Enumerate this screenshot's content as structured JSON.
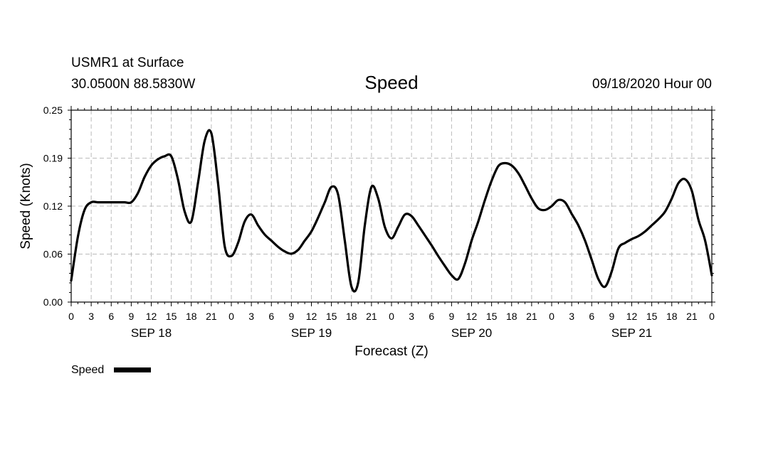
{
  "header": {
    "station": "USMR1 at Surface",
    "location": "30.0500N 88.5830W",
    "title": "Speed",
    "timestamp": "09/18/2020 Hour 00"
  },
  "legend": {
    "label": "Speed"
  },
  "colors": {
    "line": "#000000",
    "grid": "#bbbbbb",
    "axis": "#000000"
  },
  "chart_data": {
    "type": "line",
    "title": "Speed",
    "xlabel": "Forecast (Z)",
    "ylabel": "Speed (Knots)",
    "ylim": [
      0,
      0.25
    ],
    "xlim": [
      0,
      96
    ],
    "yticks": [
      "0.00",
      "0.06",
      "0.12",
      "0.19",
      "0.25"
    ],
    "ytick_values": [
      0,
      0.0625,
      0.125,
      0.1875,
      0.25
    ],
    "xtick_labels": [
      "0",
      "3",
      "6",
      "9",
      "12",
      "15",
      "18",
      "21",
      "0",
      "3",
      "6",
      "9",
      "12",
      "15",
      "18",
      "21",
      "0",
      "3",
      "6",
      "9",
      "12",
      "15",
      "18",
      "21",
      "0",
      "3",
      "6",
      "9",
      "12",
      "15",
      "18",
      "21",
      "0"
    ],
    "day_labels": [
      {
        "text": "SEP 18",
        "hour": 12
      },
      {
        "text": "SEP 19",
        "hour": 36
      },
      {
        "text": "SEP 20",
        "hour": 60
      },
      {
        "text": "SEP 21",
        "hour": 84
      }
    ],
    "grid": true,
    "legend_position": "bottom-left",
    "series": [
      {
        "name": "Speed",
        "x": [
          0,
          1,
          2,
          3,
          4,
          5,
          6,
          7,
          8,
          9,
          10,
          11,
          12,
          13,
          14,
          15,
          16,
          17,
          18,
          19,
          20,
          21,
          22,
          23,
          24,
          25,
          26,
          27,
          28,
          29,
          30,
          31,
          32,
          33,
          34,
          35,
          36,
          37,
          38,
          39,
          40,
          41,
          42,
          43,
          44,
          45,
          46,
          47,
          48,
          49,
          50,
          51,
          52,
          53,
          54,
          55,
          56,
          57,
          58,
          59,
          60,
          61,
          62,
          63,
          64,
          65,
          66,
          67,
          68,
          69,
          70,
          71,
          72,
          73,
          74,
          75,
          76,
          77,
          78,
          79,
          80,
          81,
          82,
          83,
          84,
          85,
          86,
          87,
          88,
          89,
          90,
          91,
          92,
          93,
          94,
          95,
          96
        ],
        "y": [
          0.028,
          0.085,
          0.12,
          0.13,
          0.13,
          0.13,
          0.13,
          0.13,
          0.13,
          0.13,
          0.142,
          0.163,
          0.178,
          0.186,
          0.19,
          0.19,
          0.16,
          0.118,
          0.105,
          0.155,
          0.21,
          0.22,
          0.155,
          0.073,
          0.06,
          0.077,
          0.105,
          0.114,
          0.1,
          0.088,
          0.08,
          0.072,
          0.066,
          0.063,
          0.068,
          0.08,
          0.092,
          0.11,
          0.13,
          0.15,
          0.14,
          0.08,
          0.02,
          0.025,
          0.1,
          0.15,
          0.135,
          0.098,
          0.083,
          0.098,
          0.114,
          0.112,
          0.1,
          0.087,
          0.074,
          0.06,
          0.047,
          0.035,
          0.03,
          0.05,
          0.08,
          0.105,
          0.133,
          0.158,
          0.177,
          0.181,
          0.178,
          0.168,
          0.152,
          0.135,
          0.122,
          0.12,
          0.125,
          0.133,
          0.13,
          0.115,
          0.1,
          0.08,
          0.055,
          0.03,
          0.02,
          0.04,
          0.07,
          0.077,
          0.082,
          0.086,
          0.092,
          0.1,
          0.108,
          0.118,
          0.135,
          0.155,
          0.16,
          0.145,
          0.107,
          0.08,
          0.035
        ]
      }
    ]
  }
}
